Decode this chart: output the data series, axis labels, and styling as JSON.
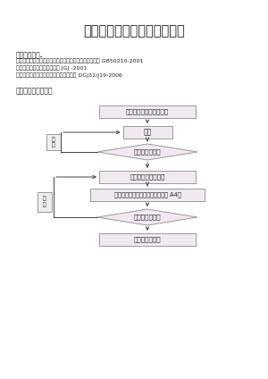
{
  "title": "外墙岩棉板保温监理实施细则",
  "section1_title": "一、编制依据.",
  "section1_lines": [
    "监理规划、设计文件、《外墙外保温工程质量验收规范》 GB50210-2001",
    "《外墙外保温工程技术规程》 JGJ -2001",
    "《民用建筑节能工程施工质量验收规程》 DGJ32/J19-2006"
  ],
  "section2_title": "二、监理工作的流程",
  "flowchart_boxes": [
    "检查施工单位的技术文案",
    "施工",
    "完成后施工单位自检",
    "施工单位报验，填《报验申请表》 A4表",
    "监理工程师签认"
  ],
  "flowchart_diamonds": [
    "监理工程师巡视",
    "监理工程师验收"
  ],
  "loop_labels": [
    "问\n正",
    "问\n正"
  ],
  "bg_color": "#ffffff",
  "box_edge_color": "#999999",
  "box_fill": "#f0eaf0",
  "diamond_fill": "#f0eaf0",
  "arrow_color": "#444444",
  "text_color": "#222222"
}
